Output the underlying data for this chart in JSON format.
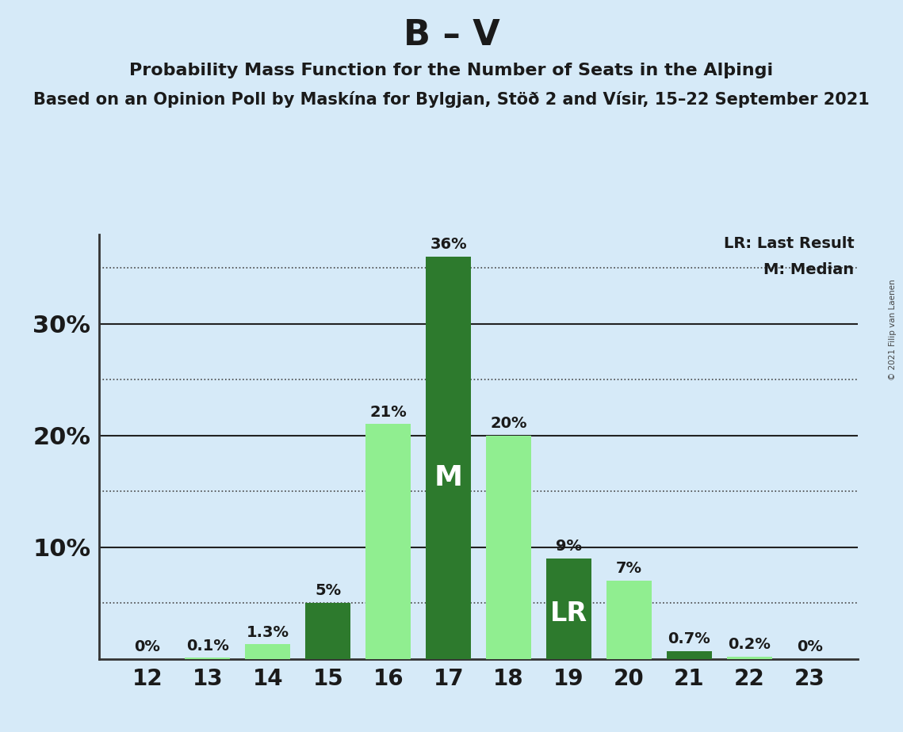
{
  "title": "B – V",
  "subtitle1": "Probability Mass Function for the Number of Seats in the Alþingi",
  "subtitle2": "Based on an Opinion Poll by Maskína for Bylgjan, Stöð 2 and Vísir, 15–22 September 2021",
  "copyright": "© 2021 Filip van Laenen",
  "seats": [
    12,
    13,
    14,
    15,
    16,
    17,
    18,
    19,
    20,
    21,
    22,
    23
  ],
  "values": [
    0.0,
    0.1,
    1.3,
    5.0,
    21.0,
    36.0,
    20.0,
    9.0,
    7.0,
    0.7,
    0.2,
    0.0
  ],
  "labels": [
    "0%",
    "0.1%",
    "1.3%",
    "5%",
    "21%",
    "36%",
    "20%",
    "9%",
    "7%",
    "0.7%",
    "0.2%",
    "0%"
  ],
  "bar_colors": [
    "#90EE90",
    "#90EE90",
    "#90EE90",
    "#2d7a2d",
    "#90EE90",
    "#2d7a2d",
    "#90EE90",
    "#2d7a2d",
    "#90EE90",
    "#2d7a2d",
    "#90EE90",
    "#90EE90"
  ],
  "median_seat": 17,
  "lr_seat": 19,
  "background_color": "#d6eaf8",
  "grid_dotted": [
    5,
    15,
    25,
    35
  ],
  "grid_solid": [
    10,
    20,
    30
  ],
  "ylim": [
    0,
    38
  ],
  "label_color": "#1a1a1a",
  "light_green": "#90EE90",
  "dark_green": "#2d7a2d"
}
